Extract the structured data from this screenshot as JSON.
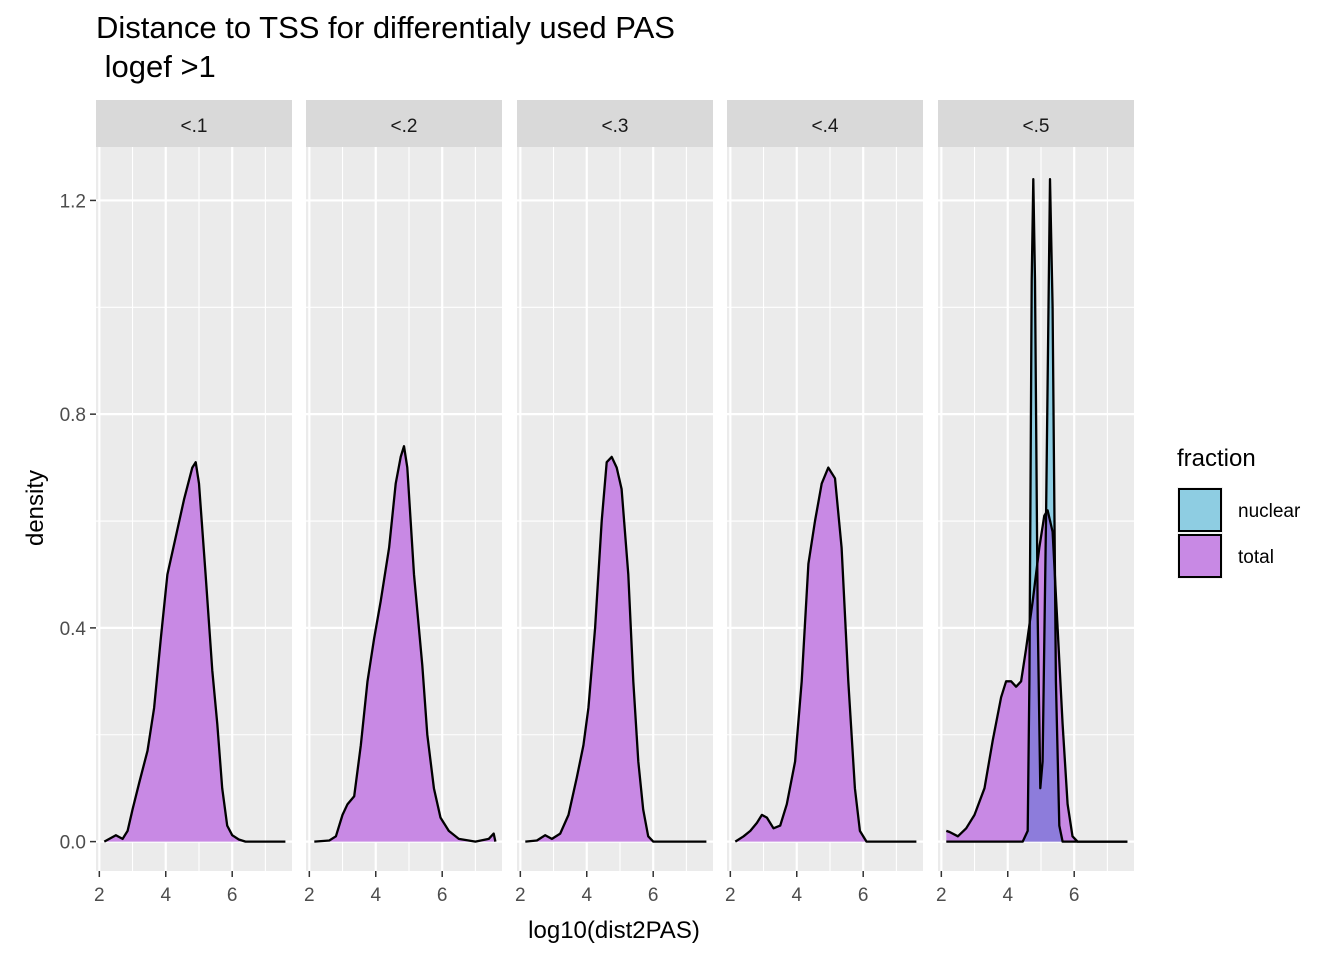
{
  "chart_data": {
    "type": "density",
    "title_line1": "Distance to TSS for differentialy used PAS",
    "title_line2": " logef >1",
    "xlabel": "log10(dist2PAS)",
    "ylabel": "density",
    "xlim": [
      1.9,
      7.8
    ],
    "ylim": [
      -0.055,
      1.3
    ],
    "x_ticks": [
      2,
      4,
      6
    ],
    "y_ticks": [
      0.0,
      0.4,
      0.8,
      1.2
    ],
    "y_tick_labels": [
      "0.0",
      "0.4",
      "0.8",
      "1.2"
    ],
    "legend": {
      "title": "fraction",
      "position": "right",
      "entries": [
        {
          "name": "nuclear",
          "color": "#8ecde2"
        },
        {
          "name": "total",
          "color": "#c889e4"
        }
      ]
    },
    "colors": {
      "panel_bg": "#ebebeb",
      "strip_bg": "#d9d9d9",
      "grid": "#ffffff",
      "nuclear_fill": "#8ecde2",
      "total_fill": "#c889e4",
      "overlap_fill": "#8d7cdb"
    },
    "panels": [
      {
        "label": "<.1",
        "series": [
          {
            "name": "total",
            "points": [
              [
                2.15,
                0.0
              ],
              [
                2.3,
                0.005
              ],
              [
                2.5,
                0.012
              ],
              [
                2.7,
                0.005
              ],
              [
                2.85,
                0.02
              ],
              [
                3.0,
                0.06
              ],
              [
                3.2,
                0.11
              ],
              [
                3.45,
                0.17
              ],
              [
                3.65,
                0.25
              ],
              [
                3.85,
                0.38
              ],
              [
                4.05,
                0.5
              ],
              [
                4.3,
                0.57
              ],
              [
                4.55,
                0.64
              ],
              [
                4.8,
                0.7
              ],
              [
                4.9,
                0.71
              ],
              [
                5.0,
                0.67
              ],
              [
                5.2,
                0.5
              ],
              [
                5.4,
                0.32
              ],
              [
                5.55,
                0.22
              ],
              [
                5.7,
                0.1
              ],
              [
                5.85,
                0.03
              ],
              [
                6.0,
                0.012
              ],
              [
                6.2,
                0.004
              ],
              [
                6.4,
                0.0
              ],
              [
                7.6,
                0.0
              ]
            ]
          }
        ]
      },
      {
        "label": "<.2",
        "series": [
          {
            "name": "total",
            "points": [
              [
                2.15,
                0.0
              ],
              [
                2.6,
                0.002
              ],
              [
                2.8,
                0.01
              ],
              [
                3.0,
                0.05
              ],
              [
                3.15,
                0.07
              ],
              [
                3.35,
                0.085
              ],
              [
                3.55,
                0.18
              ],
              [
                3.75,
                0.3
              ],
              [
                3.95,
                0.38
              ],
              [
                4.15,
                0.45
              ],
              [
                4.4,
                0.55
              ],
              [
                4.6,
                0.67
              ],
              [
                4.75,
                0.72
              ],
              [
                4.85,
                0.74
              ],
              [
                4.95,
                0.7
              ],
              [
                5.15,
                0.5
              ],
              [
                5.4,
                0.33
              ],
              [
                5.55,
                0.2
              ],
              [
                5.75,
                0.1
              ],
              [
                5.95,
                0.045
              ],
              [
                6.2,
                0.02
              ],
              [
                6.5,
                0.005
              ],
              [
                7.0,
                0.0
              ],
              [
                7.4,
                0.005
              ],
              [
                7.55,
                0.015
              ],
              [
                7.6,
                0.0
              ]
            ]
          }
        ]
      },
      {
        "label": "<.3",
        "series": [
          {
            "name": "total",
            "points": [
              [
                2.15,
                0.0
              ],
              [
                2.5,
                0.002
              ],
              [
                2.75,
                0.012
              ],
              [
                2.95,
                0.005
              ],
              [
                3.2,
                0.015
              ],
              [
                3.45,
                0.05
              ],
              [
                3.7,
                0.12
              ],
              [
                3.9,
                0.18
              ],
              [
                4.05,
                0.25
              ],
              [
                4.25,
                0.4
              ],
              [
                4.45,
                0.6
              ],
              [
                4.6,
                0.71
              ],
              [
                4.75,
                0.72
              ],
              [
                4.9,
                0.7
              ],
              [
                5.05,
                0.66
              ],
              [
                5.25,
                0.5
              ],
              [
                5.4,
                0.3
              ],
              [
                5.55,
                0.15
              ],
              [
                5.7,
                0.06
              ],
              [
                5.85,
                0.01
              ],
              [
                6.0,
                0.0
              ],
              [
                7.6,
                0.0
              ]
            ]
          }
        ]
      },
      {
        "label": "<.4",
        "series": [
          {
            "name": "total",
            "points": [
              [
                2.15,
                0.0
              ],
              [
                2.4,
                0.01
              ],
              [
                2.6,
                0.02
              ],
              [
                2.8,
                0.035
              ],
              [
                2.95,
                0.05
              ],
              [
                3.1,
                0.045
              ],
              [
                3.3,
                0.025
              ],
              [
                3.5,
                0.03
              ],
              [
                3.7,
                0.07
              ],
              [
                3.95,
                0.15
              ],
              [
                4.15,
                0.3
              ],
              [
                4.35,
                0.52
              ],
              [
                4.55,
                0.6
              ],
              [
                4.75,
                0.67
              ],
              [
                4.95,
                0.7
              ],
              [
                5.15,
                0.68
              ],
              [
                5.35,
                0.55
              ],
              [
                5.55,
                0.3
              ],
              [
                5.75,
                0.1
              ],
              [
                5.9,
                0.02
              ],
              [
                6.1,
                0.0
              ],
              [
                7.6,
                0.0
              ]
            ]
          }
        ]
      },
      {
        "label": "<.5",
        "series": [
          {
            "name": "nuclear",
            "points": [
              [
                2.15,
                0.0
              ],
              [
                4.45,
                0.0
              ],
              [
                4.6,
                0.02
              ],
              [
                4.65,
                0.3
              ],
              [
                4.72,
                1.05
              ],
              [
                4.77,
                1.24
              ],
              [
                4.82,
                1.05
              ],
              [
                4.9,
                0.42
              ],
              [
                4.98,
                0.1
              ],
              [
                5.05,
                0.15
              ],
              [
                5.15,
                0.6
              ],
              [
                5.27,
                1.24
              ],
              [
                5.35,
                1.0
              ],
              [
                5.45,
                0.3
              ],
              [
                5.55,
                0.03
              ],
              [
                5.65,
                0.0
              ],
              [
                7.6,
                0.0
              ]
            ]
          },
          {
            "name": "total",
            "points": [
              [
                2.15,
                0.02
              ],
              [
                2.25,
                0.018
              ],
              [
                2.5,
                0.01
              ],
              [
                2.75,
                0.025
              ],
              [
                3.0,
                0.05
              ],
              [
                3.3,
                0.1
              ],
              [
                3.55,
                0.19
              ],
              [
                3.8,
                0.27
              ],
              [
                3.95,
                0.3
              ],
              [
                4.1,
                0.3
              ],
              [
                4.25,
                0.29
              ],
              [
                4.4,
                0.3
              ],
              [
                4.55,
                0.36
              ],
              [
                4.75,
                0.45
              ],
              [
                4.95,
                0.55
              ],
              [
                5.1,
                0.61
              ],
              [
                5.2,
                0.62
              ],
              [
                5.35,
                0.58
              ],
              [
                5.5,
                0.4
              ],
              [
                5.65,
                0.22
              ],
              [
                5.8,
                0.07
              ],
              [
                5.95,
                0.01
              ],
              [
                6.1,
                0.0
              ],
              [
                7.6,
                0.0
              ]
            ]
          }
        ]
      }
    ]
  }
}
